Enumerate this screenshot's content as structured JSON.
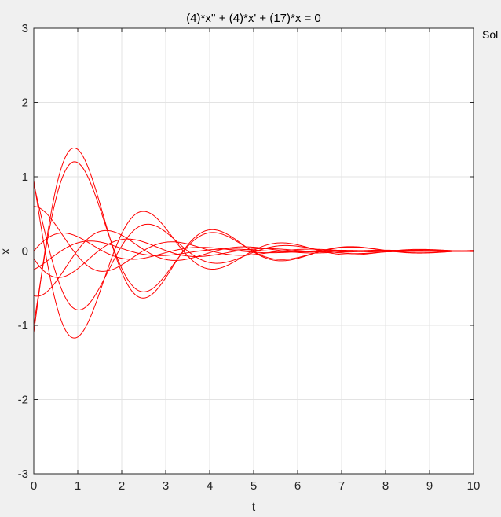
{
  "window": {
    "legend_fragment": "Sol"
  },
  "chart_data": {
    "type": "line",
    "title": "(4)*x'' + (4)*x' + (17)*x = 0",
    "xlabel": "t",
    "ylabel": "x",
    "xlim": [
      0,
      10
    ],
    "ylim": [
      -3,
      3
    ],
    "xticks": [
      0,
      1,
      2,
      3,
      4,
      5,
      6,
      7,
      8,
      9,
      10
    ],
    "yticks": [
      -3,
      -2,
      -1,
      0,
      1,
      2,
      3
    ],
    "grid": true,
    "line_color": "#ff0000",
    "background": "#ffffff",
    "equation": {
      "a": 4,
      "b": 4,
      "c": 17
    },
    "series": [
      {
        "x0": 0.95,
        "v0": -3.8
      },
      {
        "x0": -1.1,
        "v0": 4.5
      },
      {
        "x0": 0.6,
        "v0": 0.0
      },
      {
        "x0": -0.6,
        "v0": -0.2
      },
      {
        "x0": -0.25,
        "v0": 0.3
      },
      {
        "x0": -1.0,
        "v0": 3.9
      },
      {
        "x0": 0.9,
        "v0": -2.5
      },
      {
        "x0": -0.1,
        "v0": -0.9
      },
      {
        "x0": 0.0,
        "v0": 0.7
      }
    ]
  }
}
